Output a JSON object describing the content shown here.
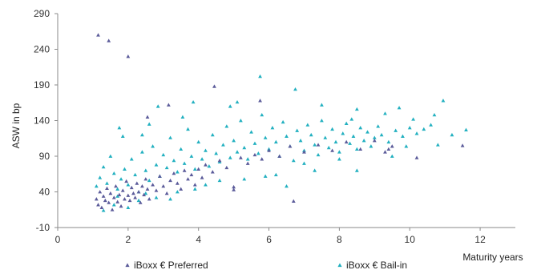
{
  "chart_data": {
    "type": "scatter",
    "xlabel": "Maturity years",
    "ylabel": "ASW in bp",
    "xlim": [
      0,
      13
    ],
    "ylim": [
      -10,
      290
    ],
    "x_ticks": [
      0,
      2,
      4,
      6,
      8,
      10,
      12
    ],
    "y_ticks": [
      -10,
      40,
      90,
      140,
      190,
      240,
      290
    ],
    "grid": false,
    "legend_position": "bottom",
    "series": [
      {
        "name": "iBoxx € Preferred",
        "color": "#5b5b9a",
        "marker": "triangle",
        "points": [
          [
            1.1,
            30
          ],
          [
            1.15,
            22
          ],
          [
            1.2,
            40
          ],
          [
            1.25,
            18
          ],
          [
            1.3,
            34
          ],
          [
            1.35,
            28
          ],
          [
            1.4,
            45
          ],
          [
            1.45,
            25
          ],
          [
            1.5,
            38
          ],
          [
            1.55,
            15
          ],
          [
            1.6,
            32
          ],
          [
            1.65,
            48
          ],
          [
            1.7,
            26
          ],
          [
            1.75,
            36
          ],
          [
            1.8,
            20
          ],
          [
            1.85,
            42
          ],
          [
            1.9,
            30
          ],
          [
            1.95,
            55
          ],
          [
            2.0,
            35
          ],
          [
            2.05,
            28
          ],
          [
            2.1,
            46
          ],
          [
            2.15,
            38
          ],
          [
            2.2,
            32
          ],
          [
            2.25,
            52
          ],
          [
            2.3,
            40
          ],
          [
            2.35,
            25
          ],
          [
            2.4,
            48
          ],
          [
            2.45,
            36
          ],
          [
            2.5,
            58
          ],
          [
            2.55,
            44
          ],
          [
            2.6,
            30
          ],
          [
            2.7,
            50
          ],
          [
            2.8,
            42
          ],
          [
            2.9,
            62
          ],
          [
            3.0,
            48
          ],
          [
            3.1,
            38
          ],
          [
            3.2,
            56
          ],
          [
            3.3,
            66
          ],
          [
            3.4,
            52
          ],
          [
            3.5,
            44
          ],
          [
            3.6,
            70
          ],
          [
            3.7,
            58
          ],
          [
            3.8,
            64
          ],
          [
            3.9,
            50
          ],
          [
            4.0,
            72
          ],
          [
            4.1,
            60
          ],
          [
            4.2,
            78
          ],
          [
            4.4,
            68
          ],
          [
            4.6,
            84
          ],
          [
            4.8,
            74
          ],
          [
            5.0,
            47
          ],
          [
            5.0,
            43
          ],
          [
            5.2,
            88
          ],
          [
            5.4,
            80
          ],
          [
            5.6,
            92
          ],
          [
            5.8,
            86
          ],
          [
            6.0,
            98
          ],
          [
            6.3,
            90
          ],
          [
            6.6,
            104
          ],
          [
            6.7,
            27
          ],
          [
            7.0,
            96
          ],
          [
            7.4,
            106
          ],
          [
            7.8,
            98
          ],
          [
            8.2,
            110
          ],
          [
            8.6,
            100
          ],
          [
            9.0,
            112
          ],
          [
            9.3,
            96
          ],
          [
            9.4,
            100
          ],
          [
            9.5,
            104
          ],
          [
            10.2,
            88
          ],
          [
            11.5,
            105
          ],
          [
            1.15,
            260
          ],
          [
            1.45,
            252
          ],
          [
            2.0,
            230
          ],
          [
            4.45,
            188
          ],
          [
            5.75,
            168
          ],
          [
            3.15,
            162
          ],
          [
            2.55,
            145
          ]
        ]
      },
      {
        "name": "iBoxx € Bail-in",
        "color": "#22b0c0",
        "marker": "triangle",
        "points": [
          [
            1.1,
            48
          ],
          [
            1.2,
            60
          ],
          [
            1.3,
            75
          ],
          [
            1.4,
            52
          ],
          [
            1.5,
            90
          ],
          [
            1.6,
            66
          ],
          [
            1.7,
            44
          ],
          [
            1.8,
            58
          ],
          [
            1.9,
            72
          ],
          [
            2.0,
            50
          ],
          [
            2.1,
            86
          ],
          [
            2.2,
            64
          ],
          [
            2.3,
            40
          ],
          [
            2.4,
            96
          ],
          [
            2.5,
            70
          ],
          [
            2.6,
            56
          ],
          [
            2.7,
            104
          ],
          [
            2.8,
            78
          ],
          [
            2.9,
            62
          ],
          [
            3.0,
            92
          ],
          [
            3.1,
            74
          ],
          [
            3.2,
            116
          ],
          [
            3.3,
            84
          ],
          [
            3.4,
            68
          ],
          [
            3.5,
            100
          ],
          [
            3.6,
            80
          ],
          [
            3.7,
            128
          ],
          [
            3.8,
            90
          ],
          [
            3.9,
            72
          ],
          [
            4.0,
            110
          ],
          [
            4.1,
            86
          ],
          [
            4.2,
            98
          ],
          [
            4.3,
            76
          ],
          [
            4.4,
            120
          ],
          [
            4.5,
            94
          ],
          [
            4.6,
            82
          ],
          [
            4.7,
            106
          ],
          [
            4.8,
            132
          ],
          [
            4.9,
            88
          ],
          [
            5.0,
            112
          ],
          [
            5.1,
            96
          ],
          [
            5.2,
            140
          ],
          [
            5.3,
            102
          ],
          [
            5.4,
            86
          ],
          [
            5.5,
            124
          ],
          [
            5.6,
            108
          ],
          [
            5.7,
            94
          ],
          [
            5.8,
            148
          ],
          [
            5.9,
            116
          ],
          [
            6.0,
            100
          ],
          [
            6.1,
            130
          ],
          [
            6.2,
            110
          ],
          [
            6.3,
            90
          ],
          [
            6.4,
            138
          ],
          [
            6.5,
            118
          ],
          [
            6.6,
            104
          ],
          [
            6.7,
            84
          ],
          [
            6.8,
            126
          ],
          [
            6.9,
            112
          ],
          [
            7.0,
            98
          ],
          [
            7.1,
            134
          ],
          [
            7.2,
            120
          ],
          [
            7.3,
            106
          ],
          [
            7.4,
            92
          ],
          [
            7.5,
            140
          ],
          [
            7.6,
            116
          ],
          [
            7.7,
            102
          ],
          [
            7.8,
            128
          ],
          [
            7.9,
            110
          ],
          [
            8.0,
            96
          ],
          [
            8.1,
            122
          ],
          [
            8.2,
            136
          ],
          [
            8.3,
            108
          ],
          [
            8.4,
            118
          ],
          [
            8.5,
            100
          ],
          [
            8.6,
            130
          ],
          [
            8.7,
            112
          ],
          [
            8.8,
            124
          ],
          [
            8.9,
            104
          ],
          [
            9.0,
            116
          ],
          [
            9.1,
            132
          ],
          [
            9.2,
            120
          ],
          [
            9.4,
            110
          ],
          [
            9.6,
            126
          ],
          [
            9.8,
            118
          ],
          [
            10.0,
            130
          ],
          [
            10.2,
            122
          ],
          [
            10.4,
            128
          ],
          [
            10.6,
            134
          ],
          [
            1.75,
            130
          ],
          [
            1.85,
            118
          ],
          [
            2.4,
            120
          ],
          [
            2.6,
            135
          ],
          [
            2.85,
            160
          ],
          [
            3.55,
            145
          ],
          [
            3.85,
            166
          ],
          [
            4.9,
            160
          ],
          [
            5.1,
            166
          ],
          [
            5.75,
            202
          ],
          [
            6.75,
            184
          ],
          [
            7.5,
            162
          ],
          [
            8.35,
            142
          ],
          [
            8.5,
            156
          ],
          [
            9.3,
            150
          ],
          [
            9.7,
            158
          ],
          [
            10.1,
            142
          ],
          [
            10.7,
            148
          ],
          [
            10.95,
            168
          ],
          [
            11.6,
            127
          ],
          [
            1.3,
            14
          ],
          [
            1.6,
            22
          ],
          [
            2.0,
            18
          ],
          [
            2.3,
            28
          ],
          [
            2.8,
            32
          ],
          [
            3.4,
            40
          ],
          [
            3.9,
            44
          ],
          [
            4.6,
            56
          ],
          [
            5.3,
            58
          ],
          [
            6.2,
            64
          ],
          [
            7.3,
            70
          ],
          [
            8.5,
            70
          ],
          [
            3.2,
            30
          ],
          [
            2.5,
            38
          ],
          [
            1.7,
            34
          ],
          [
            4.2,
            50
          ],
          [
            6.5,
            48
          ],
          [
            5.9,
            62
          ],
          [
            7.0,
            80
          ],
          [
            8.0,
            86
          ],
          [
            9.5,
            90
          ],
          [
            9.9,
            104
          ],
          [
            10.8,
            106
          ],
          [
            11.2,
            120
          ]
        ]
      }
    ]
  }
}
